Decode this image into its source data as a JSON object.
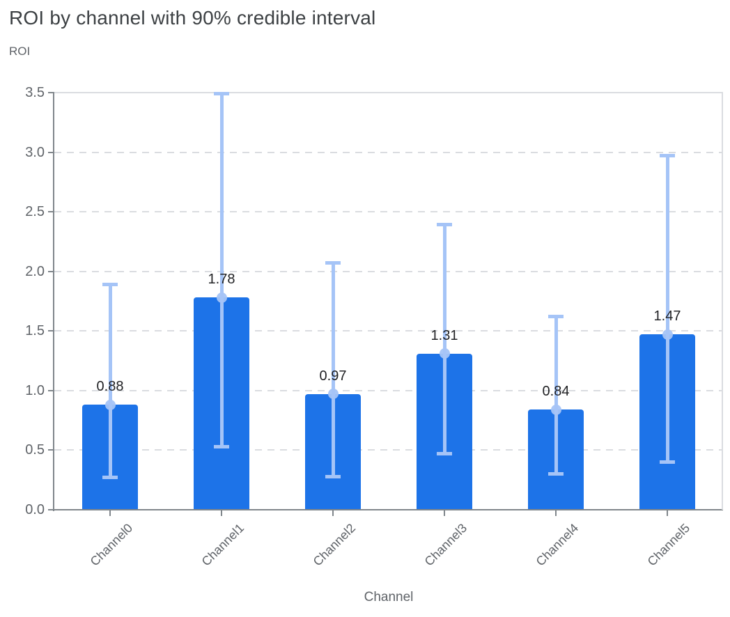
{
  "chart_data": {
    "type": "bar",
    "title": "ROI by channel with 90% credible interval",
    "ylabel": "ROI",
    "xlabel": "Channel",
    "categories": [
      "Channel0",
      "Channel1",
      "Channel2",
      "Channel3",
      "Channel4",
      "Channel5"
    ],
    "values": [
      0.88,
      1.78,
      0.97,
      1.31,
      0.84,
      1.47
    ],
    "value_labels": [
      "0.88",
      "1.78",
      "0.97",
      "1.31",
      "0.84",
      "1.47"
    ],
    "ci_low": [
      0.27,
      0.53,
      0.28,
      0.47,
      0.3,
      0.4
    ],
    "ci_high": [
      1.89,
      3.49,
      2.07,
      2.39,
      1.62,
      2.97
    ],
    "ylim": [
      0,
      3.5
    ],
    "y_ticks": [
      {
        "value": 0.0,
        "label": "0.0"
      },
      {
        "value": 0.5,
        "label": "0.5"
      },
      {
        "value": 1.0,
        "label": "1.0"
      },
      {
        "value": 1.5,
        "label": "1.5"
      },
      {
        "value": 2.0,
        "label": "2.0"
      },
      {
        "value": 2.5,
        "label": "2.5"
      },
      {
        "value": 3.0,
        "label": "3.0"
      },
      {
        "value": 3.5,
        "label": "3.5"
      }
    ],
    "grid": "horizontal-dashed",
    "legend": "none",
    "colors": {
      "bar": "#1d73e8",
      "interval": "#a5c4f7",
      "grid": "#dadce0",
      "axis": "#80868b",
      "tick_text": "#5f6368",
      "title_text": "#3c4043",
      "value_text": "#202124"
    }
  }
}
